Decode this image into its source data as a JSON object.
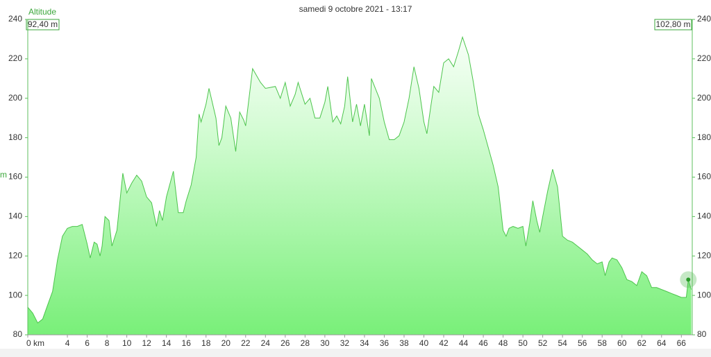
{
  "chart_data": {
    "type": "area",
    "title": "samedi 9 octobre 2021 - 13:17",
    "ylabel": "m",
    "left_badge": "92,40 m",
    "right_badge": "102,80 m",
    "x": [
      0,
      0.5,
      1,
      1.5,
      2,
      2.5,
      3,
      3.5,
      4,
      4.5,
      5,
      5.5,
      6,
      6.3,
      6.7,
      7,
      7.3,
      7.5,
      7.8,
      8.2,
      8.5,
      9,
      9.6,
      10,
      10.5,
      11,
      11.5,
      12,
      12.5,
      13,
      13.3,
      13.6,
      14,
      14.7,
      15.2,
      15.7,
      16,
      16.5,
      17,
      17.3,
      17.5,
      18,
      18.3,
      19,
      19.3,
      19.6,
      20,
      20.5,
      21,
      21.4,
      21.8,
      22,
      22.7,
      23.5,
      24,
      25,
      25.5,
      26,
      26.5,
      27,
      27.3,
      28,
      28.5,
      29,
      29.5,
      30,
      30.3,
      30.8,
      31.2,
      31.6,
      32,
      32.3,
      32.8,
      33.2,
      33.6,
      34,
      34.5,
      34.7,
      35.5,
      36,
      36.5,
      37,
      37.5,
      38,
      38.5,
      39,
      39.5,
      40,
      40.3,
      40.7,
      41,
      41.5,
      42,
      42.5,
      43,
      43.5,
      43.9,
      44.5,
      45,
      45.5,
      46,
      46.5,
      47,
      47.5,
      48,
      48.3,
      48.6,
      49,
      49.5,
      50,
      50.3,
      50.7,
      51,
      51.4,
      51.7,
      52,
      52.5,
      53,
      53.5,
      54,
      54.5,
      55,
      55.5,
      56,
      56.5,
      57,
      57.5,
      58,
      58.3,
      58.7,
      59,
      59.5,
      60,
      60.5,
      61,
      61.5,
      62,
      62.5,
      63,
      63.5,
      64,
      64.5,
      65,
      65.5,
      66,
      66.5,
      66.7,
      67
    ],
    "series": [
      {
        "name": "Altitude",
        "color": "#4cc44c",
        "values": [
          94,
          91,
          86,
          88,
          95,
          102,
          118,
          130,
          134,
          135,
          135,
          136,
          126,
          119,
          127,
          126,
          120,
          125,
          140,
          138,
          125,
          133,
          162,
          152,
          157,
          161,
          158,
          150,
          147,
          135,
          143,
          138,
          150,
          163,
          142,
          142,
          148,
          156,
          170,
          192,
          188,
          197,
          205,
          190,
          176,
          180,
          196,
          190,
          173,
          193,
          189,
          186,
          215,
          208,
          205,
          206,
          200,
          208,
          196,
          202,
          208,
          197,
          200,
          190,
          190,
          198,
          206,
          188,
          191,
          187,
          196,
          211,
          188,
          197,
          186,
          197,
          181,
          210,
          200,
          188,
          179,
          179,
          181,
          188,
          200,
          216,
          205,
          188,
          182,
          196,
          206,
          203,
          218,
          220,
          216,
          224,
          231,
          222,
          208,
          192,
          184,
          175,
          166,
          155,
          133,
          130,
          134,
          135,
          134,
          135,
          125,
          137,
          148,
          138,
          132,
          140,
          153,
          164,
          155,
          130,
          128,
          127,
          125,
          123,
          121,
          118,
          116,
          117,
          110,
          117,
          119,
          118,
          114,
          108,
          107,
          105,
          112,
          110,
          104,
          104,
          103,
          102,
          101,
          100,
          99,
          99,
          108,
          103
        ]
      }
    ],
    "cursor": {
      "x": 66.7,
      "y": 108
    },
    "xlim": [
      0,
      67.1
    ],
    "xticks": [
      {
        "value": 0,
        "label": "0 km"
      },
      4,
      6,
      8,
      10,
      12,
      14,
      16,
      18,
      20,
      22,
      24,
      26,
      28,
      30,
      32,
      34,
      36,
      38,
      40,
      42,
      44,
      46,
      48,
      50,
      52,
      54,
      56,
      58,
      60,
      62,
      64,
      66
    ],
    "ylim": [
      80,
      240
    ],
    "yticks": [
      80,
      100,
      120,
      140,
      160,
      180,
      200,
      220,
      240
    ],
    "y2lim": [
      80,
      240
    ],
    "y2ticks": [
      80,
      100,
      120,
      140,
      160,
      180,
      200,
      220,
      240
    ]
  }
}
